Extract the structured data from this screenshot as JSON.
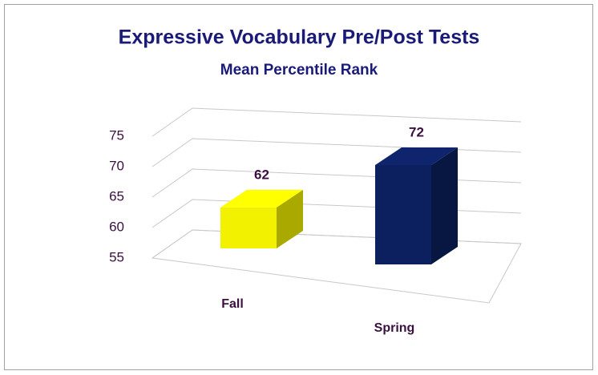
{
  "chart_data": {
    "type": "bar3d",
    "title": "Expressive Vocabulary Pre/Post Tests",
    "subtitle": "Mean Percentile Rank",
    "categories": [
      "Fall",
      "Spring"
    ],
    "values": [
      62,
      72
    ],
    "colors": [
      "#f2f200",
      "#0c1f5e"
    ],
    "ylim": [
      55,
      75
    ],
    "yticks": [
      55,
      60,
      65,
      70,
      75
    ],
    "grid": true
  }
}
